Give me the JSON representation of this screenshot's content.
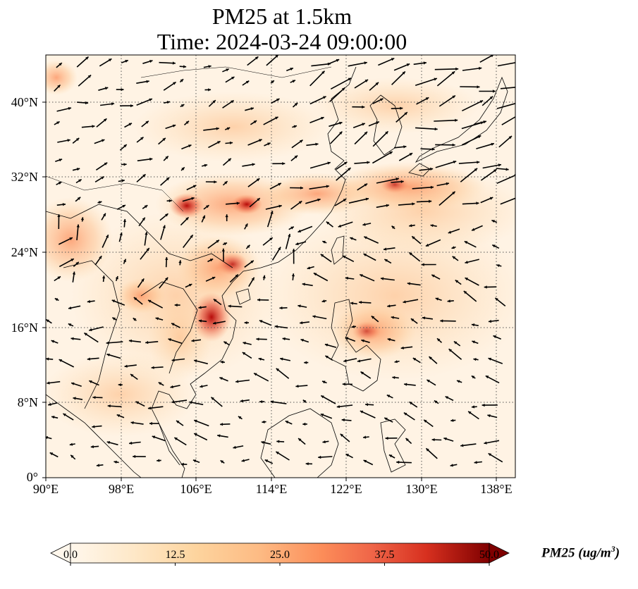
{
  "title": {
    "line1": "PM25 at 1.5km",
    "line2": "Time: 2024-03-24 09:00:00"
  },
  "map": {
    "variable": "PM25",
    "level": "1.5km",
    "time": "2024-03-24 09:00:00",
    "extent_lon": [
      90,
      140
    ],
    "extent_lat": [
      0,
      45
    ],
    "x_ticks": [
      "90°E",
      "98°E",
      "106°E",
      "114°E",
      "122°E",
      "130°E",
      "138°E"
    ],
    "y_ticks": [
      "0°",
      "8°N",
      "16°N",
      "24°N",
      "32°N",
      "40°N"
    ],
    "gridlines": "dotted",
    "overlay": "wind vectors (arrows)",
    "colormap": "OrRd",
    "colors": {
      "low": "#fff7ec",
      "mid": "#fc8d59",
      "high": "#7f0000"
    }
  },
  "colorbar": {
    "label_text": "PM25 (ug/m",
    "label_sup": "3",
    "label_close": ")",
    "min": 0.0,
    "max": 50.0,
    "extend": "both",
    "ticks": [
      "0.0",
      "12.5",
      "25.0",
      "37.5",
      "50.0"
    ]
  }
}
